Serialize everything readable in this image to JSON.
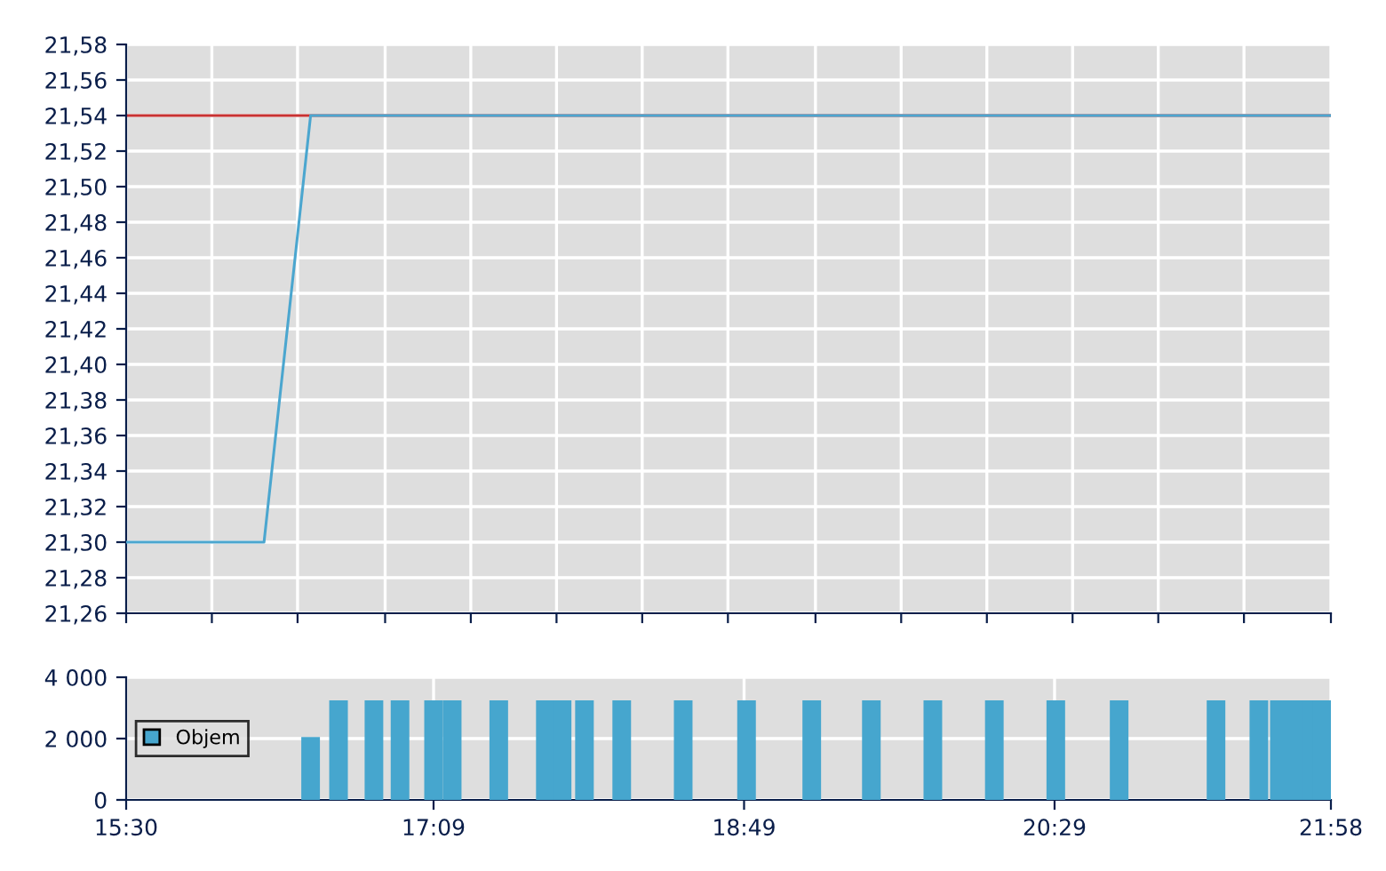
{
  "chart_data": [
    {
      "type": "line",
      "tick_labels": "y",
      "grid": true,
      "xlim": [
        15.5,
        21.9667
      ],
      "xticks": [
        {
          "value": 15.5,
          "label": null
        },
        {
          "value": 15.96,
          "label": null
        },
        {
          "value": 16.42,
          "label": null
        },
        {
          "value": 16.89,
          "label": null
        },
        {
          "value": 17.35,
          "label": null
        },
        {
          "value": 17.81,
          "label": null
        },
        {
          "value": 18.27,
          "label": null
        },
        {
          "value": 18.73,
          "label": null
        },
        {
          "value": 19.2,
          "label": null
        },
        {
          "value": 19.66,
          "label": null
        },
        {
          "value": 20.12,
          "label": null
        },
        {
          "value": 20.58,
          "label": null
        },
        {
          "value": 21.04,
          "label": null
        },
        {
          "value": 21.5,
          "label": null
        },
        {
          "value": 21.9667,
          "label": null
        }
      ],
      "ylim": [
        21.26,
        21.58
      ],
      "yticks": [
        {
          "value": 21.26,
          "label": "21,26"
        },
        {
          "value": 21.28,
          "label": "21,28"
        },
        {
          "value": 21.3,
          "label": "21,30"
        },
        {
          "value": 21.32,
          "label": "21,32"
        },
        {
          "value": 21.34,
          "label": "21,34"
        },
        {
          "value": 21.36,
          "label": "21,36"
        },
        {
          "value": 21.38,
          "label": "21,38"
        },
        {
          "value": 21.4,
          "label": "21,40"
        },
        {
          "value": 21.42,
          "label": "21,42"
        },
        {
          "value": 21.44,
          "label": "21,44"
        },
        {
          "value": 21.46,
          "label": "21,46"
        },
        {
          "value": 21.48,
          "label": "21,48"
        },
        {
          "value": 21.5,
          "label": "21,50"
        },
        {
          "value": 21.52,
          "label": "21,52"
        },
        {
          "value": 21.54,
          "label": "21,54"
        },
        {
          "value": 21.56,
          "label": "21,56"
        },
        {
          "value": 21.58,
          "label": "21,58"
        }
      ],
      "ref_lines": [
        {
          "axis": "y",
          "value": 21.54,
          "color": "#c83232"
        }
      ],
      "series": [
        {
          "color": "#4ba6cf",
          "x": [
            15.5,
            16.24,
            16.49,
            21.9667
          ],
          "values": [
            21.3,
            21.3,
            21.54,
            21.54
          ]
        }
      ]
    },
    {
      "type": "bar",
      "grid": true,
      "legend": "left",
      "xlim": [
        15.5,
        21.9667
      ],
      "xticks": [
        {
          "value": 15.5,
          "label": "15:30"
        },
        {
          "value": 17.15,
          "label": "17:09"
        },
        {
          "value": 18.8167,
          "label": "18:49"
        },
        {
          "value": 20.4833,
          "label": "20:29"
        },
        {
          "value": 21.9667,
          "label": "21:58"
        }
      ],
      "ylim": [
        0,
        4000
      ],
      "yticks": [
        {
          "value": 0,
          "label": "0"
        },
        {
          "value": 2000,
          "label": "2 000"
        },
        {
          "value": 4000,
          "label": "4 000"
        }
      ],
      "series": [
        {
          "name": "Objem",
          "color": "#46a6ce",
          "x": [
            16.49,
            16.64,
            16.83,
            16.97,
            17.15,
            17.25,
            17.5,
            17.75,
            17.84,
            17.96,
            18.16,
            18.49,
            18.83,
            19.18,
            19.5,
            19.83,
            20.16,
            20.49,
            20.83,
            21.35,
            21.58,
            21.69,
            21.77,
            21.86,
            21.92
          ],
          "values": [
            2050,
            3250,
            3250,
            3250,
            3250,
            3250,
            3250,
            3250,
            3250,
            3250,
            3250,
            3250,
            3250,
            3250,
            3250,
            3250,
            3250,
            3250,
            3250,
            3250,
            3250,
            3250,
            3250,
            3250,
            3250
          ]
        }
      ]
    }
  ]
}
